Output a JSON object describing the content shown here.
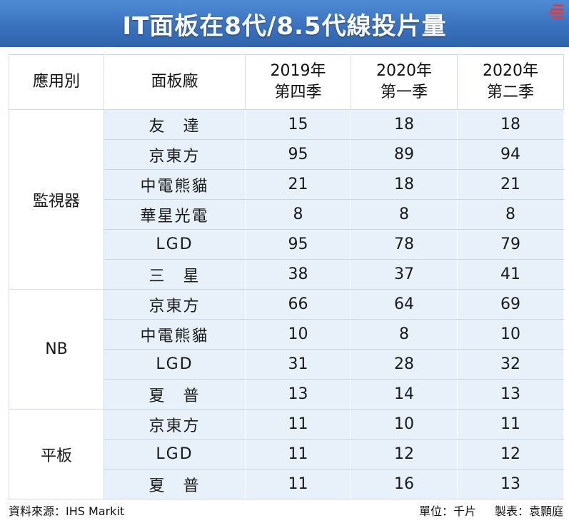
{
  "title": "IT面板在8代/8.5代線投片量",
  "headers": {
    "application": "應用別",
    "panel_maker": "面板廠",
    "q1_line1": "2019年",
    "q1_line2": "第四季",
    "q2_line1": "2020年",
    "q2_line2": "第一季",
    "q3_line1": "2020年",
    "q3_line2": "第二季"
  },
  "chart_data": {
    "type": "table",
    "title": "IT面板在8代/8.5代線投片量",
    "columns": [
      "應用別",
      "面板廠",
      "2019年第四季",
      "2020年第一季",
      "2020年第二季"
    ],
    "groups": [
      {
        "category": "監視器",
        "rows": [
          {
            "maker": "友　達",
            "values": [
              15,
              18,
              18
            ]
          },
          {
            "maker": "京東方",
            "values": [
              95,
              89,
              94
            ]
          },
          {
            "maker": "中電熊貓",
            "values": [
              21,
              18,
              21
            ]
          },
          {
            "maker": "華星光電",
            "values": [
              8,
              8,
              8
            ]
          },
          {
            "maker": "LGD",
            "values": [
              95,
              78,
              79
            ]
          },
          {
            "maker": "三　星",
            "values": [
              38,
              37,
              41
            ]
          }
        ]
      },
      {
        "category": "NB",
        "rows": [
          {
            "maker": "京東方",
            "values": [
              66,
              64,
              69
            ]
          },
          {
            "maker": "中電熊貓",
            "values": [
              10,
              8,
              10
            ]
          },
          {
            "maker": "LGD",
            "values": [
              31,
              28,
              32
            ]
          },
          {
            "maker": "夏　普",
            "values": [
              13,
              14,
              13
            ]
          }
        ]
      },
      {
        "category": "平板",
        "rows": [
          {
            "maker": "京東方",
            "values": [
              11,
              10,
              11
            ]
          },
          {
            "maker": "LGD",
            "values": [
              11,
              12,
              12
            ]
          },
          {
            "maker": "夏　普",
            "values": [
              11,
              16,
              13
            ]
          }
        ]
      }
    ]
  },
  "footer": {
    "source": "資料來源：IHS Markit",
    "unit": "單位：千片",
    "credit": "製表：袁顥庭"
  },
  "colors": {
    "title_bar": "#3b72bf",
    "row_fill": "#e8f0f9",
    "row_border": "#c9d5e3"
  }
}
